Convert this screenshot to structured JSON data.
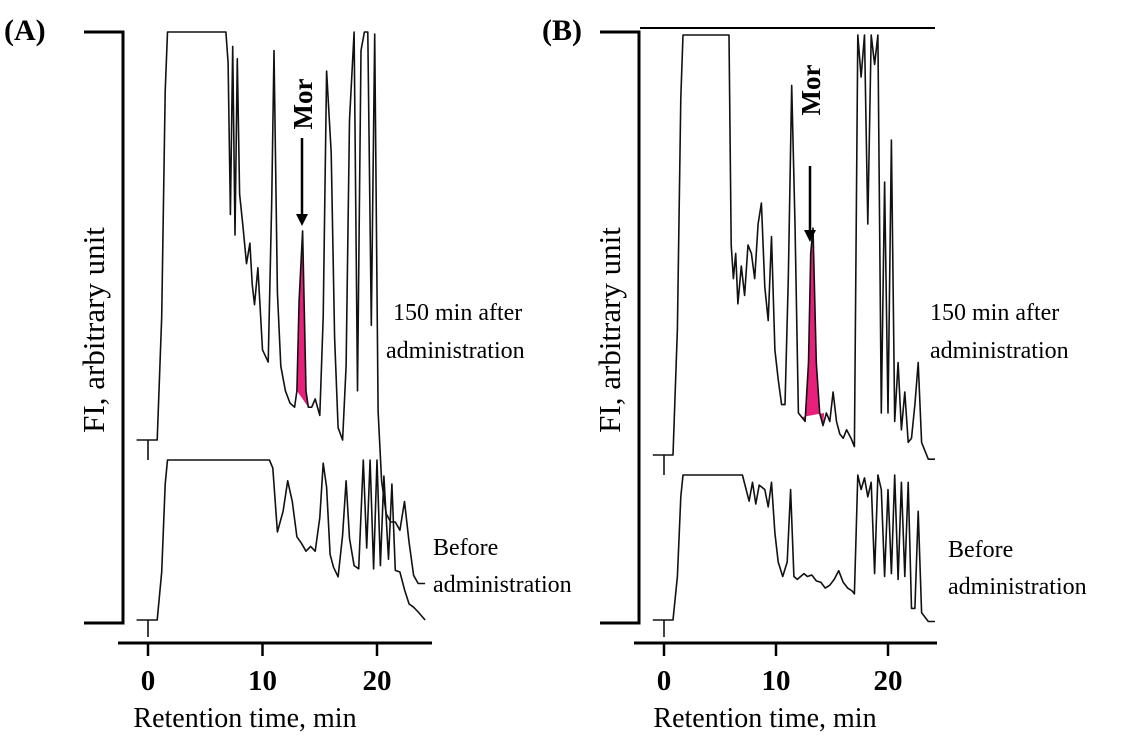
{
  "chart_data": [
    {
      "type": "line",
      "panel_label": "(A)",
      "ylabel": "FI, arbitrary unit",
      "xlabel": "Retention time, min",
      "xticks": [
        "0",
        "10",
        "20"
      ],
      "xlim": [
        -2.5,
        24.5
      ],
      "highlight_color": "#e8207c",
      "peak_label": "Mor",
      "peak_rt": 13.5,
      "series": [
        {
          "name": "150 min after administration",
          "x": [
            -1,
            0.8,
            1.2,
            1.5,
            1.7,
            2.0,
            2.4,
            3,
            4,
            5,
            6,
            6.8,
            7.0,
            7.2,
            7.4,
            7.6,
            7.8,
            8.0,
            8.3,
            8.6,
            8.9,
            9.1,
            9.3,
            9.6,
            10.0,
            10.5,
            10.8,
            11.0,
            11.3,
            11.6,
            12.0,
            12.4,
            12.8,
            13.0,
            13.2,
            13.5,
            13.8,
            14.0,
            14.3,
            14.6,
            15.0,
            15.3,
            15.6,
            16.0,
            16.3,
            16.6,
            17.0,
            17.3,
            17.6,
            18.0,
            18.3,
            18.6,
            18.9,
            19.2,
            19.5,
            19.8,
            20.1,
            20.4,
            20.8,
            21.2,
            21.6,
            22.0,
            22.4,
            22.8,
            23.2,
            23.6,
            24.2
          ],
          "y": [
            0.0,
            0.0,
            0.3,
            0.85,
            1.0,
            1.0,
            1.0,
            1.0,
            1.0,
            1.0,
            1.0,
            1.0,
            0.92,
            0.55,
            0.96,
            0.5,
            0.93,
            0.6,
            0.52,
            0.43,
            0.48,
            0.38,
            0.33,
            0.42,
            0.22,
            0.19,
            0.58,
            0.95,
            0.36,
            0.18,
            0.12,
            0.09,
            0.08,
            0.12,
            0.34,
            0.51,
            0.12,
            0.08,
            0.08,
            0.1,
            0.06,
            0.3,
            0.9,
            0.7,
            0.25,
            0.03,
            0.0,
            0.18,
            0.78,
            1.0,
            0.12,
            0.95,
            1.0,
            1.0,
            0.28,
            0.99,
            0.07,
            -0.1,
            -0.18,
            -0.2,
            -0.2,
            -0.22,
            -0.15,
            -0.25,
            -0.33,
            -0.35,
            -0.35
          ]
        },
        {
          "name": "Before administration",
          "x": [
            -1,
            0.8,
            1.2,
            1.5,
            1.7,
            2.0,
            3,
            4,
            5,
            6,
            7,
            8,
            9,
            10,
            10.6,
            10.9,
            11.3,
            11.8,
            12.2,
            12.6,
            13.0,
            13.4,
            13.8,
            14.2,
            14.6,
            15.0,
            15.3,
            15.6,
            15.9,
            16.2,
            16.6,
            17.0,
            17.3,
            17.6,
            18.0,
            18.4,
            18.8,
            19.1,
            19.4,
            19.7,
            20.0,
            20.3,
            20.6,
            21.0,
            21.3,
            21.6,
            22.0,
            22.4,
            22.8,
            23.2,
            23.6,
            24.2
          ],
          "y": [
            0.0,
            0.0,
            0.3,
            0.85,
            1.0,
            1.0,
            1.0,
            1.0,
            1.0,
            1.0,
            1.0,
            1.0,
            1.0,
            1.0,
            1.0,
            0.95,
            0.55,
            0.68,
            0.87,
            0.74,
            0.52,
            0.48,
            0.43,
            0.46,
            0.43,
            0.64,
            0.98,
            0.83,
            0.41,
            0.33,
            0.27,
            0.53,
            0.87,
            0.51,
            0.34,
            0.32,
            1.0,
            0.45,
            1.0,
            0.32,
            1.0,
            0.34,
            0.9,
            0.38,
            0.85,
            0.31,
            0.3,
            0.19,
            0.1,
            0.08,
            0.05,
            0.0
          ]
        }
      ]
    },
    {
      "type": "line",
      "panel_label": "(B)",
      "ylabel": "FI, arbitrary unit",
      "xlabel": "Retention time, min",
      "xticks": [
        "0",
        "10",
        "20"
      ],
      "xlim": [
        -2.5,
        24.5
      ],
      "highlight_color": "#e8207c",
      "peak_label": "Mor",
      "peak_rt": 13.0,
      "series": [
        {
          "name": "150 min after administration",
          "x": [
            -1,
            0.8,
            1.2,
            1.5,
            1.7,
            2.0,
            3,
            4,
            5,
            5.8,
            6.0,
            6.2,
            6.4,
            6.6,
            6.9,
            7.2,
            7.5,
            7.8,
            8.1,
            8.4,
            8.7,
            9.0,
            9.3,
            9.6,
            9.9,
            10.2,
            10.5,
            10.8,
            11.1,
            11.4,
            11.7,
            12.0,
            12.3,
            12.6,
            12.9,
            13.1,
            13.3,
            13.6,
            13.9,
            14.2,
            14.5,
            14.8,
            15.1,
            15.4,
            15.7,
            16.0,
            16.3,
            16.7,
            17.0,
            17.3,
            17.6,
            17.9,
            18.2,
            18.5,
            18.8,
            19.1,
            19.4,
            19.7,
            20.0,
            20.3,
            20.6,
            20.9,
            21.2,
            21.5,
            21.8,
            22.1,
            22.4,
            22.7,
            23.0,
            23.6,
            24.2
          ],
          "y": [
            0.0,
            0.0,
            0.3,
            0.85,
            1.0,
            1.0,
            1.0,
            1.0,
            1.0,
            1.0,
            0.5,
            0.42,
            0.48,
            0.36,
            0.45,
            0.38,
            0.5,
            0.48,
            0.42,
            0.55,
            0.6,
            0.4,
            0.32,
            0.52,
            0.25,
            0.18,
            0.12,
            0.12,
            0.42,
            0.88,
            0.55,
            0.1,
            0.09,
            0.08,
            0.22,
            0.48,
            0.54,
            0.22,
            0.1,
            0.07,
            0.1,
            0.08,
            0.15,
            0.08,
            0.05,
            0.04,
            0.06,
            0.04,
            0.02,
            1.0,
            0.9,
            1.0,
            0.55,
            1.0,
            0.93,
            1.0,
            0.1,
            0.65,
            0.1,
            0.75,
            0.08,
            0.22,
            0.06,
            0.15,
            0.03,
            0.04,
            0.12,
            0.22,
            0.03,
            -0.01,
            -0.01
          ]
        },
        {
          "name": "Before administration",
          "x": [
            -1,
            0.8,
            1.2,
            1.5,
            1.7,
            2.0,
            3,
            4,
            5,
            6,
            7,
            7.6,
            7.9,
            8.2,
            8.5,
            9.0,
            9.3,
            9.6,
            9.9,
            10.2,
            10.6,
            11.0,
            11.3,
            11.6,
            11.9,
            12.2,
            12.5,
            12.8,
            13.2,
            13.6,
            14.0,
            14.4,
            14.8,
            15.2,
            15.6,
            16.0,
            16.4,
            16.8,
            17.0,
            17.3,
            17.6,
            17.9,
            18.2,
            18.5,
            18.8,
            19.1,
            19.4,
            19.7,
            20.0,
            20.3,
            20.6,
            20.9,
            21.2,
            21.5,
            21.8,
            22.1,
            22.4,
            22.7,
            23.0,
            23.6,
            24.2
          ],
          "y": [
            0.0,
            0.0,
            0.3,
            0.85,
            1.0,
            1.0,
            1.0,
            1.0,
            1.0,
            1.0,
            1.0,
            0.82,
            0.95,
            0.8,
            0.93,
            0.9,
            0.78,
            0.95,
            0.6,
            0.4,
            0.3,
            0.4,
            0.9,
            0.3,
            0.28,
            0.3,
            0.32,
            0.3,
            0.31,
            0.27,
            0.26,
            0.22,
            0.24,
            0.28,
            0.34,
            0.26,
            0.22,
            0.2,
            0.18,
            1.0,
            0.9,
            0.98,
            0.85,
            0.95,
            0.32,
            1.0,
            0.9,
            0.3,
            0.9,
            0.32,
            1.0,
            0.28,
            0.95,
            0.3,
            0.95,
            0.08,
            0.08,
            0.75,
            0.05,
            -0.01,
            -0.01
          ]
        }
      ]
    }
  ]
}
